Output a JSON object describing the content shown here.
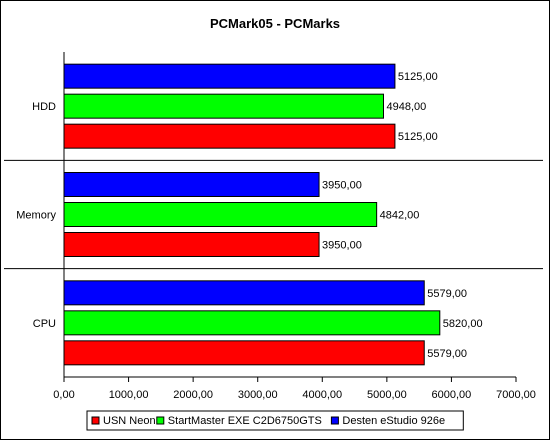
{
  "chart_data": {
    "type": "bar",
    "orientation": "horizontal",
    "title": "PCMark05 - PCMarks",
    "xlabel": "",
    "ylabel": "",
    "categories": [
      "HDD",
      "Memory",
      "CPU"
    ],
    "series": [
      {
        "name": "Desten eStudio 926e",
        "color": "#0000ff",
        "values": [
          5125,
          3950,
          5579
        ]
      },
      {
        "name": "StartMaster EXE C2D6750GTS",
        "color": "#00ff00",
        "values": [
          4948,
          4842,
          5820
        ]
      },
      {
        "name": "USN Neon",
        "color": "#ff0000",
        "values": [
          5125,
          3950,
          5579
        ]
      }
    ],
    "value_labels": [
      [
        "5125,00",
        "3950,00",
        "5579,00"
      ],
      [
        "4948,00",
        "4842,00",
        "5820,00"
      ],
      [
        "5125,00",
        "3950,00",
        "5579,00"
      ]
    ],
    "xlim": [
      0,
      7000
    ],
    "x_ticks": [
      0,
      1000,
      2000,
      3000,
      4000,
      5000,
      6000,
      7000
    ],
    "x_tick_labels": [
      "0,00",
      "1000,00",
      "2000,00",
      "3000,00",
      "4000,00",
      "5000,00",
      "6000,00",
      "7000,00"
    ],
    "grid": false,
    "legend": {
      "position": "bottom",
      "entries": [
        {
          "name": "USN Neon",
          "color": "#ff0000"
        },
        {
          "name": "StartMaster EXE C2D6750GTS",
          "color": "#00ff00"
        },
        {
          "name": "Desten eStudio 926e",
          "color": "#0000ff"
        }
      ]
    }
  }
}
